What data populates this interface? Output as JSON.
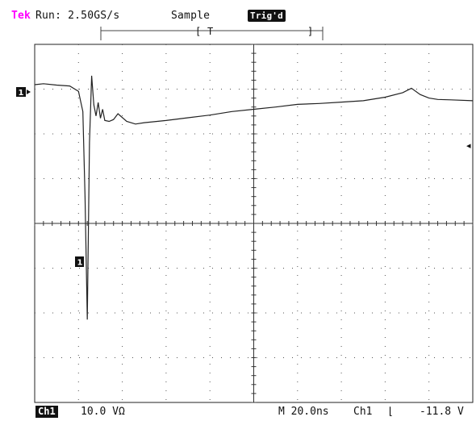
{
  "header": {
    "brand": "Tek",
    "run_status": "Run: 2.50GS/s",
    "acquisition_mode": "Sample",
    "trigger_status": "Trig'd"
  },
  "markers": {
    "channel_marker": "1",
    "trigger_marker_label": "T",
    "cursor_label": "1",
    "trigger_level_arrow": "◂"
  },
  "footer": {
    "channel_badge": "Ch1",
    "vertical_scale": "10.0 VΩ",
    "timebase": "M 20.0ns",
    "trigger_source": "Ch1",
    "trigger_slope": "⌊",
    "trigger_level": "-11.8 V"
  },
  "chart_data": {
    "type": "line",
    "title": "",
    "xlabel": "",
    "ylabel": "",
    "x_divisions": 10,
    "y_divisions": 8,
    "xlim": [
      0,
      200
    ],
    "ylim": [
      -40,
      40
    ],
    "grid": true,
    "series": [
      {
        "x": [
          0,
          4,
          10,
          16,
          20,
          22,
          23,
          24,
          25,
          26,
          27,
          28,
          29,
          30,
          31,
          32,
          34,
          36,
          38,
          42,
          46,
          50,
          60,
          70,
          80,
          90,
          100,
          110,
          120,
          130,
          140,
          150,
          160,
          168,
          172,
          176,
          180,
          184,
          190,
          200
        ],
        "values": [
          31.0,
          31.2,
          30.9,
          30.7,
          29.5,
          25.0,
          6.0,
          -21.5,
          18.0,
          33.0,
          26.5,
          24.0,
          27.0,
          23.5,
          25.5,
          23.0,
          22.8,
          23.2,
          24.5,
          22.8,
          22.2,
          22.5,
          23.0,
          23.6,
          24.2,
          25.0,
          25.5,
          26.0,
          26.6,
          26.8,
          27.1,
          27.4,
          28.2,
          29.2,
          30.2,
          28.8,
          28.0,
          27.7,
          27.6,
          27.4
        ]
      }
    ]
  }
}
